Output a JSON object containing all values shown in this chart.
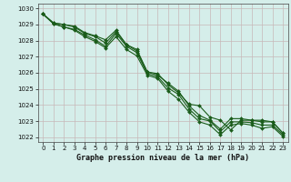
{
  "xlabel": "Graphe pression niveau de la mer (hPa)",
  "ylim": [
    1021.7,
    1030.3
  ],
  "xlim": [
    -0.5,
    23.5
  ],
  "yticks": [
    1022,
    1023,
    1024,
    1025,
    1026,
    1027,
    1028,
    1029,
    1030
  ],
  "xticks": [
    0,
    1,
    2,
    3,
    4,
    5,
    6,
    7,
    8,
    9,
    10,
    11,
    12,
    13,
    14,
    15,
    16,
    17,
    18,
    19,
    20,
    21,
    22,
    23
  ],
  "background_color": "#d5eeea",
  "grid_color": "#c8b8b8",
  "line_color": "#1a5c1a",
  "series": [
    [
      1029.65,
      1029.1,
      1029.0,
      1028.85,
      1028.45,
      1028.25,
      1027.85,
      1028.55,
      1027.75,
      1027.35,
      1026.05,
      1025.95,
      1025.25,
      1024.75,
      1024.05,
      1023.95,
      1023.25,
      1023.05,
      1022.45,
      1023.05,
      1023.05,
      1022.95,
      1022.95,
      1022.25
    ],
    [
      1029.65,
      1029.1,
      1029.0,
      1028.9,
      1028.5,
      1028.3,
      1028.05,
      1028.65,
      1027.75,
      1027.45,
      1026.05,
      1025.85,
      1025.35,
      1024.85,
      1023.95,
      1023.35,
      1023.05,
      1022.5,
      1023.15,
      1023.15,
      1023.05,
      1023.05,
      1022.95,
      1022.25
    ],
    [
      1029.65,
      1029.05,
      1028.85,
      1028.7,
      1028.35,
      1028.05,
      1027.65,
      1028.45,
      1027.65,
      1027.25,
      1025.95,
      1025.75,
      1025.05,
      1024.65,
      1023.75,
      1023.15,
      1023.0,
      1022.35,
      1022.95,
      1022.95,
      1022.9,
      1022.75,
      1022.75,
      1022.15
    ],
    [
      1029.65,
      1029.05,
      1028.85,
      1028.65,
      1028.25,
      1027.95,
      1027.55,
      1028.25,
      1027.45,
      1027.05,
      1025.85,
      1025.65,
      1024.85,
      1024.35,
      1023.55,
      1022.95,
      1022.75,
      1022.15,
      1022.75,
      1022.85,
      1022.75,
      1022.55,
      1022.65,
      1022.05
    ]
  ],
  "marker": "D",
  "markersize": 2.0,
  "linewidth": 0.8,
  "tick_fontsize": 5.0,
  "label_fontsize": 6.0
}
